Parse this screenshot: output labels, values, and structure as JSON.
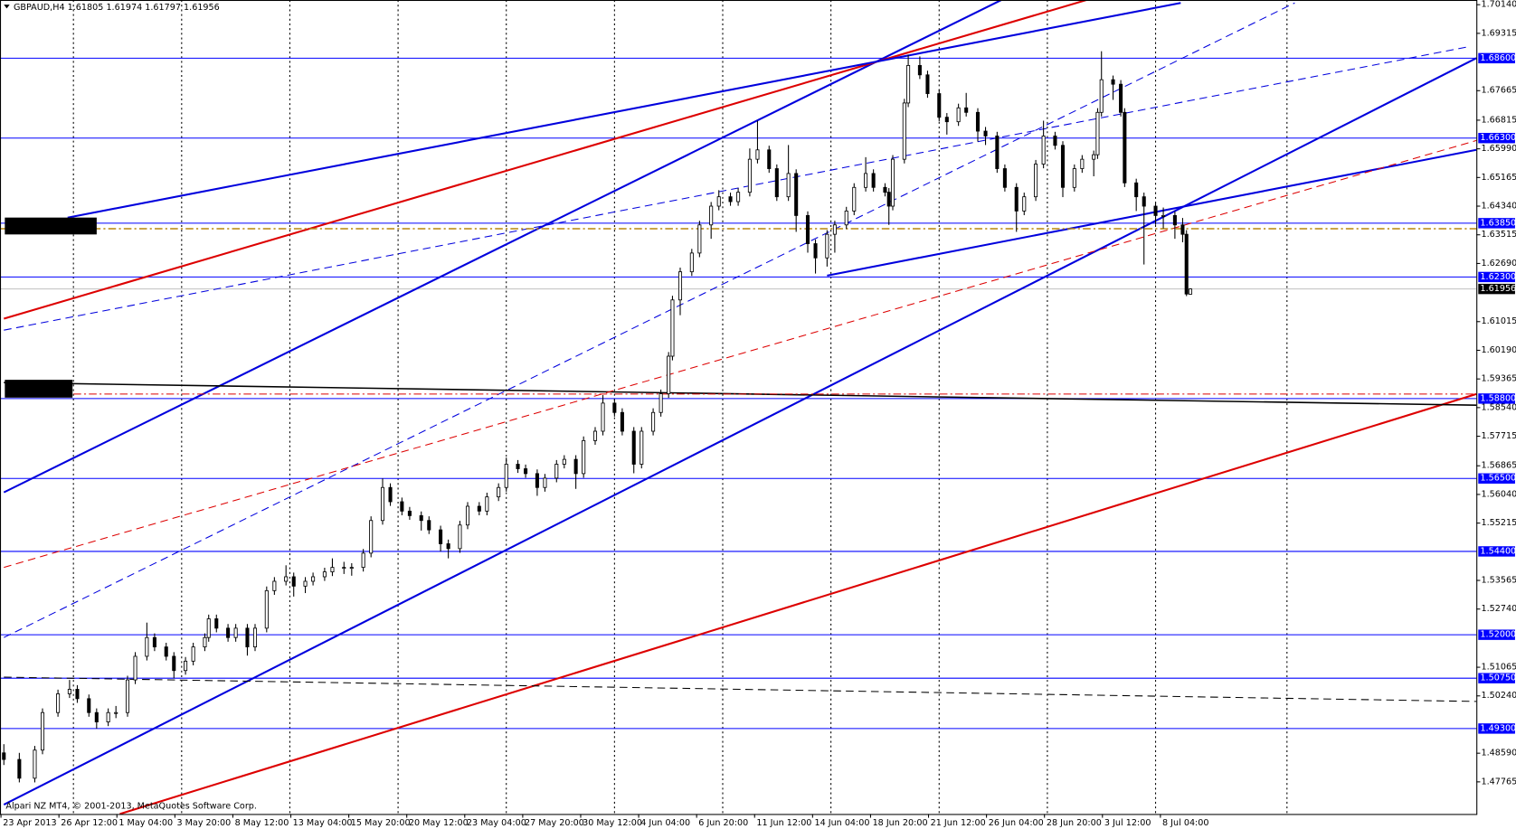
{
  "chart_data": {
    "type": "candlestick",
    "symbol": "GBPAUD,H4",
    "footer": "Alpari NZ MT4, © 2001-2013, MetaQuotes Software Corp.",
    "x": [
      1,
      5,
      9,
      11,
      15,
      18,
      20,
      23,
      25,
      28,
      30,
      33,
      35,
      38,
      40,
      43,
      45,
      48,
      50,
      53,
      54,
      56,
      59,
      61,
      64,
      66,
      69,
      71,
      74,
      76,
      79,
      81,
      84,
      86,
      89,
      91,
      94,
      96,
      99,
      101,
      104,
      106,
      109,
      111,
      114,
      116,
      119,
      121,
      124,
      126,
      129,
      131,
      134,
      136,
      139,
      141,
      144,
      146,
      149,
      151,
      154,
      156,
      159,
      161,
      164,
      166,
      169,
      171,
      173,
      174,
      176,
      179,
      181,
      184,
      186,
      189,
      191,
      194,
      196,
      199,
      201,
      204,
      206,
      209,
      211,
      214,
      216,
      219,
      221,
      224,
      226,
      229,
      230,
      231,
      234,
      235,
      238,
      240,
      243,
      245,
      248,
      250,
      253,
      255,
      258,
      260,
      263,
      265,
      268,
      270,
      273,
      275,
      278,
      280,
      283,
      284,
      285,
      288,
      290,
      291,
      294,
      296,
      299,
      301,
      304,
      306,
      307,
      308
    ],
    "open": [
      1.486,
      1.4841,
      1.4787,
      1.4868,
      1.4976,
      1.503,
      1.5043,
      1.5016,
      1.4976,
      1.4949,
      1.4976,
      1.4976,
      1.507,
      1.5138,
      1.5192,
      1.5165,
      1.5138,
      1.5097,
      1.5124,
      1.5165,
      1.5192,
      1.5246,
      1.5219,
      1.5192,
      1.5219,
      1.5165,
      1.5219,
      1.5327,
      1.5354,
      1.5367,
      1.534,
      1.5354,
      1.5367,
      1.5381,
      1.5394,
      1.5394,
      1.5394,
      1.5435,
      1.5529,
      1.5624,
      1.5583,
      1.5556,
      1.5543,
      1.5529,
      1.5502,
      1.5462,
      1.5448,
      1.5516,
      1.557,
      1.5556,
      1.5597,
      1.5624,
      1.5691,
      1.5678,
      1.5664,
      1.5624,
      1.5651,
      1.5691,
      1.5705,
      1.5664,
      1.5759,
      1.5786,
      1.5867,
      1.584,
      1.5786,
      1.5691,
      1.5786,
      1.584,
      1.5894,
      1.6002,
      1.6164,
      1.6245,
      1.6299,
      1.638,
      1.6434,
      1.6461,
      1.6447,
      1.6474,
      1.6569,
      1.6596,
      1.6542,
      1.6461,
      1.6528,
      1.6407,
      1.6326,
      1.6285,
      1.6353,
      1.638,
      1.642,
      1.6488,
      1.6528,
      1.6488,
      1.6474,
      1.6434,
      1.6569,
      1.6731,
      1.6839,
      1.6812,
      1.6758,
      1.669,
      1.6677,
      1.6717,
      1.6704,
      1.665,
      1.6636,
      1.6542,
      1.6488,
      1.642,
      1.6461,
      1.6555,
      1.6636,
      1.6609,
      1.6488,
      1.6542,
      1.6569,
      1.6582,
      1.6704,
      1.6798,
      1.6785,
      1.6704,
      1.6501,
      1.6461,
      1.6434,
      1.6407,
      1.6407,
      1.638,
      1.6353,
      1.61805
    ],
    "high": [
      1.4885,
      1.486,
      1.488,
      1.4988,
      1.5042,
      1.507,
      1.5055,
      1.5028,
      1.4988,
      1.4988,
      1.4995,
      1.5082,
      1.515,
      1.5235,
      1.5204,
      1.5177,
      1.515,
      1.5136,
      1.5177,
      1.5204,
      1.5258,
      1.5258,
      1.5231,
      1.5231,
      1.5231,
      1.5231,
      1.5339,
      1.5366,
      1.54,
      1.5379,
      1.5366,
      1.5379,
      1.5393,
      1.542,
      1.541,
      1.5406,
      1.5447,
      1.5541,
      1.565,
      1.5636,
      1.5595,
      1.5568,
      1.5555,
      1.5541,
      1.5514,
      1.5474,
      1.5528,
      1.5582,
      1.5582,
      1.5609,
      1.5636,
      1.571,
      1.5703,
      1.569,
      1.5676,
      1.5663,
      1.5703,
      1.5717,
      1.5717,
      1.5771,
      1.5798,
      1.589,
      1.5879,
      1.5852,
      1.5798,
      1.5798,
      1.5852,
      1.5906,
      1.6014,
      1.6176,
      1.6257,
      1.6311,
      1.6392,
      1.6446,
      1.648,
      1.6473,
      1.6486,
      1.66,
      1.668,
      1.6608,
      1.6554,
      1.661,
      1.654,
      1.6419,
      1.6338,
      1.6365,
      1.6392,
      1.6432,
      1.65,
      1.6575,
      1.654,
      1.65,
      1.6486,
      1.6581,
      1.6743,
      1.687,
      1.6865,
      1.6824,
      1.677,
      1.6702,
      1.6729,
      1.676,
      1.6716,
      1.6662,
      1.6648,
      1.6554,
      1.65,
      1.6473,
      1.6567,
      1.668,
      1.6648,
      1.6621,
      1.6554,
      1.6581,
      1.6594,
      1.6716,
      1.688,
      1.681,
      1.6797,
      1.6716,
      1.6513,
      1.6473,
      1.6446,
      1.643,
      1.6419,
      1.64,
      1.6365,
      1.61974
    ],
    "low": [
      1.4825,
      1.4775,
      1.4775,
      1.4856,
      1.4964,
      1.5018,
      1.5004,
      1.4964,
      1.493,
      1.4937,
      1.496,
      1.4964,
      1.5058,
      1.5126,
      1.5153,
      1.5126,
      1.5075,
      1.5085,
      1.5112,
      1.5153,
      1.518,
      1.5207,
      1.518,
      1.518,
      1.514,
      1.5153,
      1.5207,
      1.5315,
      1.5342,
      1.531,
      1.532,
      1.5342,
      1.5355,
      1.5369,
      1.5375,
      1.537,
      1.5382,
      1.5423,
      1.5517,
      1.5571,
      1.5544,
      1.5531,
      1.55,
      1.549,
      1.544,
      1.542,
      1.5436,
      1.5504,
      1.5544,
      1.5544,
      1.5585,
      1.5612,
      1.5666,
      1.5652,
      1.56,
      1.5612,
      1.5639,
      1.5679,
      1.562,
      1.5652,
      1.5747,
      1.5774,
      1.5828,
      1.5774,
      1.5665,
      1.5679,
      1.5774,
      1.5828,
      1.5882,
      1.599,
      1.612,
      1.6233,
      1.6287,
      1.634,
      1.6422,
      1.6435,
      1.6435,
      1.6462,
      1.6557,
      1.653,
      1.6449,
      1.6449,
      1.636,
      1.63,
      1.624,
      1.626,
      1.63,
      1.6368,
      1.6408,
      1.6476,
      1.6476,
      1.6462,
      1.638,
      1.6422,
      1.6557,
      1.6719,
      1.68,
      1.6746,
      1.6678,
      1.664,
      1.6665,
      1.6692,
      1.662,
      1.661,
      1.653,
      1.6476,
      1.636,
      1.6408,
      1.6449,
      1.6543,
      1.6597,
      1.646,
      1.6476,
      1.653,
      1.652,
      1.657,
      1.6692,
      1.674,
      1.6692,
      1.6489,
      1.642,
      1.6266,
      1.638,
      1.637,
      1.634,
      1.633,
      1.6175,
      1.61797
    ],
    "close": [
      1.4841,
      1.4787,
      1.4868,
      1.4976,
      1.503,
      1.5043,
      1.5016,
      1.4976,
      1.4949,
      1.4976,
      1.4976,
      1.507,
      1.5138,
      1.5192,
      1.5165,
      1.5138,
      1.5097,
      1.5124,
      1.5165,
      1.5192,
      1.5246,
      1.5219,
      1.5192,
      1.5219,
      1.5165,
      1.5219,
      1.5327,
      1.5354,
      1.5367,
      1.534,
      1.5354,
      1.5367,
      1.5381,
      1.5394,
      1.5394,
      1.5394,
      1.5435,
      1.5529,
      1.5624,
      1.5583,
      1.5556,
      1.5543,
      1.5529,
      1.5502,
      1.5462,
      1.5448,
      1.5516,
      1.557,
      1.5556,
      1.5597,
      1.5624,
      1.5691,
      1.5678,
      1.5664,
      1.5624,
      1.5651,
      1.5691,
      1.5705,
      1.5664,
      1.5759,
      1.5786,
      1.5867,
      1.584,
      1.5786,
      1.5691,
      1.5786,
      1.584,
      1.5894,
      1.6002,
      1.6164,
      1.6245,
      1.6299,
      1.638,
      1.6434,
      1.6461,
      1.6447,
      1.6474,
      1.6569,
      1.6596,
      1.6542,
      1.6461,
      1.6528,
      1.6407,
      1.6326,
      1.6285,
      1.6353,
      1.638,
      1.642,
      1.6488,
      1.6528,
      1.6488,
      1.6474,
      1.6434,
      1.6569,
      1.6731,
      1.6839,
      1.6812,
      1.6758,
      1.669,
      1.6677,
      1.6717,
      1.6704,
      1.665,
      1.6636,
      1.6542,
      1.6488,
      1.642,
      1.6461,
      1.6555,
      1.6636,
      1.6609,
      1.6488,
      1.6542,
      1.6569,
      1.6582,
      1.6704,
      1.6798,
      1.6785,
      1.6704,
      1.6501,
      1.6461,
      1.6434,
      1.6407,
      1.6407,
      1.638,
      1.6353,
      1.6181,
      1.61956
    ],
    "xlim": [
      0,
      382
    ],
    "ylim": [
      1.4684,
      1.70275
    ],
    "yticks": [
      {
        "value": 1.7014,
        "label": "1.70140"
      },
      1.69315,
      1.67665,
      1.66815,
      {
        "value": 1.6599,
        "label": "1.65990"
      },
      1.65165,
      {
        "value": 1.6434,
        "label": "1.64340"
      },
      1.63515,
      {
        "value": 1.6269,
        "label": "1.62690"
      },
      1.61015,
      {
        "value": 1.6019,
        "label": "1.60190"
      },
      1.59365,
      {
        "value": 1.5854,
        "label": "1.58540"
      },
      1.57715,
      1.56865,
      {
        "value": 1.5604,
        "label": "1.56040"
      },
      1.55215,
      1.53565,
      {
        "value": 1.5274,
        "label": "1.52740"
      },
      1.51065,
      {
        "value": 1.5024,
        "label": "1.50240"
      },
      {
        "value": 1.4859,
        "label": "1.48590"
      },
      1.47765
    ],
    "xticks": [
      {
        "value": 0,
        "label": "23 Apr 2013"
      },
      {
        "value": 15,
        "label": "26 Apr 12:00"
      },
      {
        "value": 30,
        "label": "1 May 04:00"
      },
      {
        "value": 45,
        "label": "3 May 20:00"
      },
      {
        "value": 60,
        "label": "8 May 12:00"
      },
      {
        "value": 75,
        "label": "13 May 04:00"
      },
      {
        "value": 90,
        "label": "15 May 20:00"
      },
      {
        "value": 105,
        "label": "20 May 12:00"
      },
      {
        "value": 120,
        "label": "23 May 04:00"
      },
      {
        "value": 135,
        "label": "27 May 20:00"
      },
      {
        "value": 150,
        "label": "30 May 12:00"
      },
      {
        "value": 165,
        "label": "4 Jun 04:00"
      },
      {
        "value": 180,
        "label": "6 Jun 20:00"
      },
      {
        "value": 195,
        "label": "11 Jun 12:00"
      },
      {
        "value": 210,
        "label": "14 Jun 04:00"
      },
      {
        "value": 225,
        "label": "18 Jun 20:00"
      },
      {
        "value": 240,
        "label": "21 Jun 12:00"
      },
      {
        "value": 255,
        "label": "26 Jun 04:00"
      },
      {
        "value": 270,
        "label": "28 Jun 20:00"
      },
      {
        "value": 285,
        "label": "3 Jul 12:00"
      },
      {
        "value": 300,
        "label": "8 Jul 04:00"
      }
    ],
    "xgrid": [
      19,
      47,
      75,
      103,
      131,
      159,
      187,
      215,
      243,
      271,
      299,
      333
    ],
    "level_color": "#0000ff",
    "levels": [
      {
        "value": 1.686,
        "label": "1.68600"
      },
      {
        "value": 1.663,
        "label": "1.66300"
      },
      {
        "value": 1.6385,
        "label": "1.63850"
      },
      {
        "value": 1.623,
        "label": "1.62300"
      },
      {
        "value": 1.588,
        "label": "1.58800"
      },
      {
        "value": 1.565,
        "label": "1.56500"
      },
      {
        "value": 1.544,
        "label": "1.54400"
      },
      {
        "value": 1.52,
        "label": "1.52000"
      },
      {
        "value": 1.5075,
        "label": "1.50750"
      },
      {
        "value": 1.493,
        "label": "1.49300"
      }
    ],
    "trendlines": [
      {
        "color": "#0000dd",
        "style": "solid",
        "width": 2,
        "points": [
          [
            1,
            1.561
          ],
          [
            259,
            1.7027
          ]
        ]
      },
      {
        "color": "#0000dd",
        "style": "solid",
        "width": 2,
        "points": [
          [
            1,
            1.4711
          ],
          [
            382,
            1.686
          ]
        ]
      },
      {
        "color": "#dd0000",
        "style": "solid",
        "width": 2,
        "points": [
          [
            1,
            1.611
          ],
          [
            281,
            1.7027
          ]
        ]
      },
      {
        "color": "#dd0000",
        "style": "solid",
        "width": 2,
        "points": [
          [
            31,
            1.4684
          ],
          [
            382,
            1.5893
          ]
        ]
      },
      {
        "color": "#0000dd",
        "style": "solid",
        "width": 2,
        "points": [
          [
            17.5,
            1.6401
          ],
          [
            305.5,
            1.7019
          ]
        ]
      },
      {
        "color": "#0000dd",
        "style": "solid",
        "width": 2,
        "points": [
          [
            214,
            1.6234
          ],
          [
            382,
            1.6596
          ]
        ]
      },
      {
        "color": "#000000",
        "style": "solid",
        "width": 1.5,
        "points": [
          [
            1,
            1.5926
          ],
          [
            382,
            1.5861
          ]
        ]
      },
      {
        "color": "#000000",
        "style": "dash",
        "width": 1,
        "points": [
          [
            1,
            1.5078
          ],
          [
            382,
            1.5008
          ]
        ]
      },
      {
        "color": "#0000dd",
        "style": "dash",
        "width": 1,
        "points": [
          [
            1,
            1.5192
          ],
          [
            335,
            1.7019
          ]
        ]
      },
      {
        "color": "#0000dd",
        "style": "dash",
        "width": 1,
        "points": [
          [
            1,
            1.6077
          ],
          [
            380,
            1.6893
          ]
        ]
      },
      {
        "color": "#dd0000",
        "style": "dash",
        "width": 1,
        "points": [
          [
            1,
            1.5394
          ],
          [
            382,
            1.6623
          ]
        ]
      },
      {
        "color": "#b8860b",
        "style": "dashdot",
        "width": 1.5,
        "points": [
          [
            0,
            1.6369
          ],
          [
            382,
            1.6369
          ]
        ]
      },
      {
        "color": "#dd0000",
        "style": "dashdot",
        "width": 1,
        "points": [
          [
            19,
            1.5893
          ],
          [
            382,
            1.5893
          ]
        ]
      }
    ]
  }
}
